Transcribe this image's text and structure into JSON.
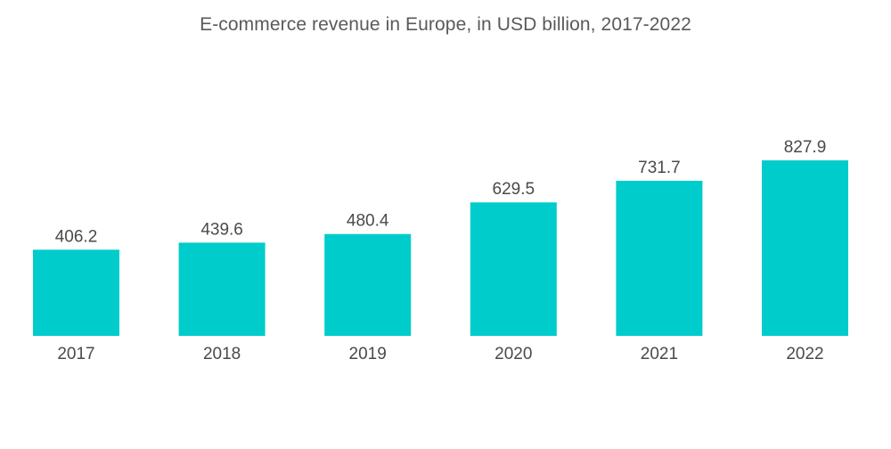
{
  "chart_data": {
    "type": "bar",
    "title": "E-commerce revenue in Europe, in USD billion, 2017-2022",
    "categories": [
      "2017",
      "2018",
      "2019",
      "2020",
      "2021",
      "2022"
    ],
    "values": [
      406.2,
      439.6,
      480.4,
      629.5,
      731.7,
      827.9
    ],
    "data_labels": [
      "406.2",
      "439.6",
      "480.4",
      "629.5",
      "731.7",
      "827.9"
    ],
    "xlabel": "",
    "ylabel": "",
    "ylim": [
      0,
      827.9
    ],
    "grid": false,
    "legend": "none",
    "bar_color": "#00cccc"
  }
}
